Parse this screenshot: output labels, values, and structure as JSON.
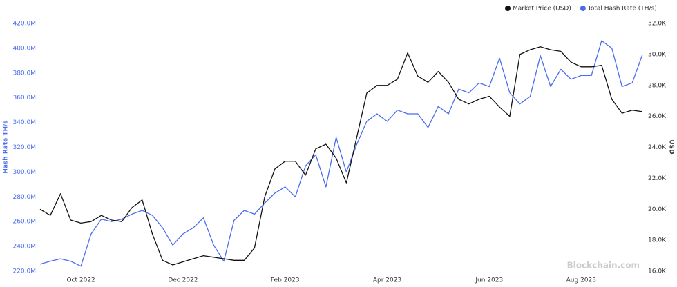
{
  "chart_data": {
    "type": "line",
    "legend": "top-right",
    "grid": false,
    "watermark": "Blockchain.com",
    "ylabel": "Hash Rate TH/s",
    "y2label": "USD",
    "categories": [
      null,
      null,
      null,
      null,
      "Oct 2022",
      null,
      null,
      null,
      null,
      null,
      null,
      null,
      null,
      null,
      "Dec 2022",
      null,
      null,
      null,
      null,
      null,
      null,
      null,
      null,
      null,
      "Feb 2023",
      null,
      null,
      null,
      null,
      null,
      null,
      null,
      null,
      null,
      "Apr 2023",
      null,
      null,
      null,
      null,
      null,
      null,
      null,
      null,
      null,
      "Jun 2023",
      null,
      null,
      null,
      null,
      null,
      null,
      null,
      null,
      "Aug 2023",
      null,
      null,
      null,
      null,
      null,
      null
    ],
    "series": [
      {
        "name": "Market Price (USD)",
        "color": "#111111",
        "axis": "y2",
        "values": [
          20.0,
          19.6,
          21.0,
          19.3,
          19.1,
          19.2,
          19.6,
          19.3,
          19.2,
          20.1,
          20.6,
          18.4,
          16.7,
          16.4,
          16.6,
          16.8,
          17.0,
          16.9,
          16.8,
          16.7,
          16.7,
          17.5,
          20.8,
          22.6,
          23.1,
          23.1,
          22.2,
          23.9,
          24.2,
          23.3,
          21.7,
          24.6,
          27.5,
          28.0,
          28.0,
          28.4,
          30.1,
          28.6,
          28.2,
          28.9,
          28.2,
          27.1,
          26.8,
          27.1,
          27.3,
          26.6,
          26.0,
          30.0,
          30.3,
          30.5,
          30.3,
          30.2,
          29.5,
          29.2,
          29.2,
          29.3,
          27.1,
          26.2,
          26.4,
          26.3
        ]
      },
      {
        "name": "Total Hash Rate (TH/s)",
        "color": "#4a6cf0",
        "axis": "y",
        "values": [
          225.6,
          228,
          230,
          228,
          224,
          250,
          262,
          260,
          262,
          266,
          269,
          265,
          255,
          241,
          250,
          255,
          263,
          241,
          228,
          261,
          269,
          266,
          275,
          283,
          288,
          280,
          305,
          314,
          288,
          328,
          300,
          322,
          341,
          347,
          341,
          350,
          347,
          347,
          336,
          353,
          347,
          367,
          364,
          372,
          369,
          392,
          364,
          355,
          361,
          394,
          369,
          383,
          375,
          378,
          378,
          406,
          400,
          369,
          372,
          395
        ]
      }
    ],
    "ylim": [
      220,
      420
    ],
    "yticks": [
      {
        "value": 220,
        "label": "220.0M"
      },
      {
        "value": 240,
        "label": "240.0M"
      },
      {
        "value": 260,
        "label": "260.0M"
      },
      {
        "value": 280,
        "label": "280.0M"
      },
      {
        "value": 300,
        "label": "300.0M"
      },
      {
        "value": 320,
        "label": "320.0M"
      },
      {
        "value": 340,
        "label": "340.0M"
      },
      {
        "value": 360,
        "label": "360.0M"
      },
      {
        "value": 380,
        "label": "380.0M"
      },
      {
        "value": 400,
        "label": "400.0M"
      },
      {
        "value": 420,
        "label": "420.0M"
      }
    ],
    "y2lim": [
      16,
      32
    ],
    "y2ticks": [
      {
        "value": 16,
        "label": "16.0K"
      },
      {
        "value": 18,
        "label": "18.0K"
      },
      {
        "value": 20,
        "label": "20.0K"
      },
      {
        "value": 22,
        "label": "22.0K"
      },
      {
        "value": 24,
        "label": "24.0K"
      },
      {
        "value": 26,
        "label": "26.0K"
      },
      {
        "value": 28,
        "label": "28.0K"
      },
      {
        "value": 30,
        "label": "30.0K"
      },
      {
        "value": 32,
        "label": "32.0K"
      }
    ]
  }
}
